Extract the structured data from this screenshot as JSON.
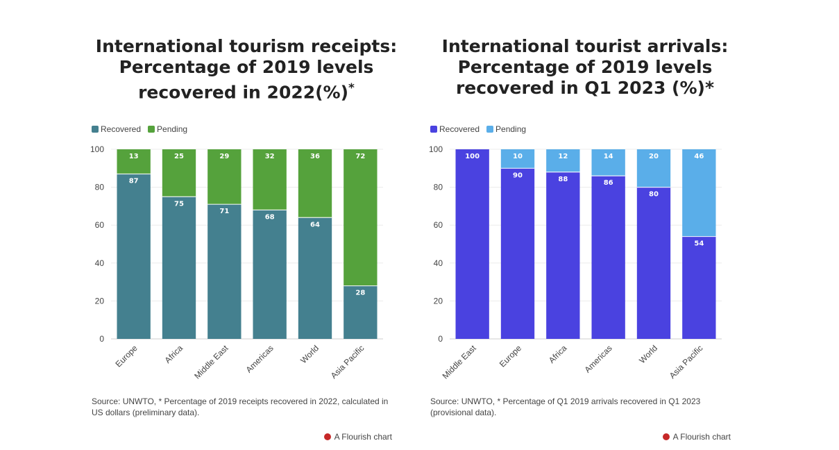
{
  "chart_data": [
    {
      "type": "bar",
      "stacked": true,
      "title_lines": [
        "International tourism receipts:",
        "Percentage of 2019 levels",
        "recovered in 2022(%)"
      ],
      "title_sup": "*",
      "categories": [
        "Europe",
        "Africa",
        "Middle East",
        "Americas",
        "World",
        "Asia Pacific"
      ],
      "series": [
        {
          "name": "Recovered",
          "color": "#44808f",
          "values": [
            87,
            75,
            71,
            68,
            64,
            28
          ]
        },
        {
          "name": "Pending",
          "color": "#55a23c",
          "values": [
            13,
            25,
            29,
            32,
            36,
            72
          ]
        }
      ],
      "ylim": [
        0,
        100
      ],
      "yticks": [
        0,
        20,
        40,
        60,
        80,
        100
      ],
      "legend": "top-left",
      "source": "Source: UNWTO, * Percentage of 2019 receipts recovered in 2022, calculated in US dollars (preliminary data).",
      "credit": "A Flourish chart"
    },
    {
      "type": "bar",
      "stacked": true,
      "title_lines": [
        "International tourist arrivals:",
        "Percentage of 2019 levels",
        "recovered in Q1 2023 (%)*"
      ],
      "title_sup": "",
      "categories": [
        "Middle East",
        "Europe",
        "Africa",
        "Americas",
        "World",
        "Asia Pacific"
      ],
      "series": [
        {
          "name": "Recovered",
          "color": "#4a42e0",
          "values": [
            100,
            90,
            88,
            86,
            80,
            54
          ]
        },
        {
          "name": "Pending",
          "color": "#5aaee9",
          "values": [
            0,
            10,
            12,
            14,
            20,
            46
          ]
        }
      ],
      "ylim": [
        0,
        100
      ],
      "yticks": [
        0,
        20,
        40,
        60,
        80,
        100
      ],
      "legend": "top-left",
      "source": "Source: UNWTO, * Percentage of Q1 2019 arrivals recovered in Q1 2023 (provisional data).",
      "credit": "A Flourish chart"
    }
  ]
}
